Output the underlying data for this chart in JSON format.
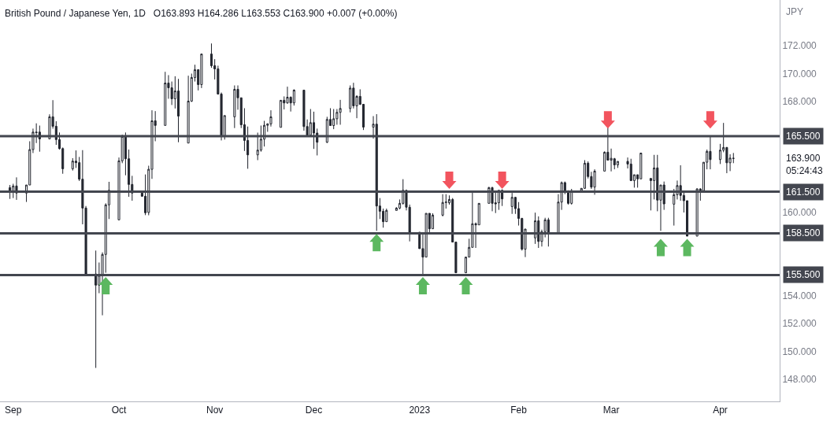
{
  "chart_data": {
    "type": "candlestick",
    "title": "British Pound / Japanese Yen, 1D",
    "subtitle": "O163.893 H164.286 L163.553 C163.900 +0.007 (+0.00%)",
    "ylabel": "JPY",
    "x": [
      "2022-08-31",
      "2022-09-01",
      "2022-09-02",
      "2022-09-05",
      "2022-09-06",
      "2022-09-07",
      "2022-09-08",
      "2022-09-09",
      "2022-09-12",
      "2022-09-13",
      "2022-09-14",
      "2022-09-15",
      "2022-09-16",
      "2022-09-19",
      "2022-09-20",
      "2022-09-21",
      "2022-09-22",
      "2022-09-23",
      "2022-09-26",
      "2022-09-27",
      "2022-09-28",
      "2022-09-29",
      "2022-09-30",
      "2022-10-03",
      "2022-10-04",
      "2022-10-05",
      "2022-10-06",
      "2022-10-07",
      "2022-10-10",
      "2022-10-11",
      "2022-10-12",
      "2022-10-13",
      "2022-10-14",
      "2022-10-17",
      "2022-10-18",
      "2022-10-19",
      "2022-10-20",
      "2022-10-21",
      "2022-10-24",
      "2022-10-25",
      "2022-10-26",
      "2022-10-27",
      "2022-10-28",
      "2022-10-31",
      "2022-11-01",
      "2022-11-02",
      "2022-11-03",
      "2022-11-04",
      "2022-11-07",
      "2022-11-08",
      "2022-11-09",
      "2022-11-10",
      "2022-11-11",
      "2022-11-14",
      "2022-11-15",
      "2022-11-16",
      "2022-11-17",
      "2022-11-18",
      "2022-11-21",
      "2022-11-22",
      "2022-11-23",
      "2022-11-24",
      "2022-11-25",
      "2022-11-28",
      "2022-11-29",
      "2022-11-30",
      "2022-12-01",
      "2022-12-02",
      "2022-12-05",
      "2022-12-06",
      "2022-12-07",
      "2022-12-08",
      "2022-12-09",
      "2022-12-12",
      "2022-12-13",
      "2022-12-14",
      "2022-12-15",
      "2022-12-16",
      "2022-12-19",
      "2022-12-20",
      "2022-12-21",
      "2022-12-22",
      "2022-12-23",
      "2022-12-26",
      "2022-12-27",
      "2022-12-28",
      "2022-12-29",
      "2022-12-30",
      "2023-01-02",
      "2023-01-03",
      "2023-01-04",
      "2023-01-05",
      "2023-01-06",
      "2023-01-09",
      "2023-01-10",
      "2023-01-11",
      "2023-01-12",
      "2023-01-13",
      "2023-01-16",
      "2023-01-17",
      "2023-01-18",
      "2023-01-19",
      "2023-01-20",
      "2023-01-23",
      "2023-01-24",
      "2023-01-25",
      "2023-01-26",
      "2023-01-27",
      "2023-01-30",
      "2023-01-31",
      "2023-02-01",
      "2023-02-02",
      "2023-02-03",
      "2023-02-06",
      "2023-02-07",
      "2023-02-08",
      "2023-02-09",
      "2023-02-10",
      "2023-02-13",
      "2023-02-14",
      "2023-02-15",
      "2023-02-16",
      "2023-02-17",
      "2023-02-20",
      "2023-02-21",
      "2023-02-22",
      "2023-02-23",
      "2023-02-24",
      "2023-02-27",
      "2023-02-28",
      "2023-03-01",
      "2023-03-02",
      "2023-03-03",
      "2023-03-06",
      "2023-03-07",
      "2023-03-08",
      "2023-03-09",
      "2023-03-10",
      "2023-03-13",
      "2023-03-14",
      "2023-03-15",
      "2023-03-16",
      "2023-03-17",
      "2023-03-20",
      "2023-03-21",
      "2023-03-22",
      "2023-03-23",
      "2023-03-24",
      "2023-03-27",
      "2023-03-28",
      "2023-03-29",
      "2023-03-30",
      "2023-03-31",
      "2023-04-03",
      "2023-04-04",
      "2023-04-05",
      "2023-04-06",
      "2023-04-07"
    ],
    "ohlc": [
      [
        161.79,
        161.98,
        160.98,
        161.47
      ],
      [
        161.53,
        162.07,
        161.04,
        161.91
      ],
      [
        161.91,
        162.53,
        160.91,
        161.4
      ],
      [
        161.4,
        161.98,
        160.76,
        161.98
      ],
      [
        161.98,
        165.13,
        161.98,
        164.53
      ],
      [
        164.53,
        166.04,
        164.28,
        165.79
      ],
      [
        165.79,
        166.42,
        165.0,
        165.75
      ],
      [
        165.79,
        166.26,
        164.38,
        165.3
      ],
      [
        165.3,
        167.07,
        165.3,
        166.89
      ],
      [
        166.89,
        168.09,
        166.04,
        166.21
      ],
      [
        166.21,
        166.57,
        164.87,
        165.25
      ],
      [
        165.25,
        165.76,
        164.53,
        164.6
      ],
      [
        164.6,
        164.68,
        162.79,
        163.15
      ],
      [
        163.15,
        163.91,
        163.02,
        163.7
      ],
      [
        163.7,
        164.47,
        163.21,
        163.59
      ],
      [
        163.59,
        164.0,
        162.27,
        162.4
      ],
      [
        162.4,
        164.49,
        159.15,
        160.32
      ],
      [
        160.32,
        160.47,
        155.51,
        155.57
      ],
      [
        155.57,
        157.26,
        148.81,
        154.77
      ],
      [
        154.77,
        156.4,
        154.19,
        155.47
      ],
      [
        155.47,
        157.13,
        152.6,
        156.98
      ],
      [
        156.98,
        160.66,
        155.66,
        160.55
      ],
      [
        160.55,
        162.21,
        159.53,
        161.6
      ],
      [
        159.47,
        163.96,
        159.47,
        163.72
      ],
      [
        163.72,
        165.6,
        163.55,
        165.47
      ],
      [
        165.47,
        165.76,
        162.68,
        163.87
      ],
      [
        163.87,
        164.53,
        161.13,
        162.02
      ],
      [
        162.02,
        162.64,
        160.85,
        161.4
      ],
      [
        161.4,
        161.51,
        161.13,
        161.17
      ],
      [
        161.17,
        162.74,
        159.81,
        159.98
      ],
      [
        160.0,
        163.37,
        159.8,
        163.11
      ],
      [
        163.11,
        167.36,
        162.42,
        166.6
      ],
      [
        166.6,
        167.3,
        165.13,
        166.27
      ],
      [
        166.27,
        170.13,
        166.27,
        169.32
      ],
      [
        169.32,
        169.89,
        168.19,
        168.98
      ],
      [
        168.98,
        169.43,
        167.74,
        168.19
      ],
      [
        168.19,
        169.81,
        167.49,
        168.75
      ],
      [
        168.75,
        169.62,
        165.06,
        166.94
      ],
      [
        165.0,
        169.85,
        165.0,
        168.02
      ],
      [
        168.02,
        170.0,
        167.96,
        169.72
      ],
      [
        169.72,
        170.64,
        169.43,
        170.28
      ],
      [
        170.28,
        170.28,
        168.79,
        169.21
      ],
      [
        169.21,
        171.41,
        168.96,
        171.41
      ],
      [
        171.41,
        172.17,
        170.42,
        170.57
      ],
      [
        170.57,
        171.04,
        169.58,
        170.34
      ],
      [
        170.34,
        170.57,
        168.49,
        168.53
      ],
      [
        168.53,
        168.64,
        165.19,
        165.47
      ],
      [
        165.47,
        166.98,
        165.25,
        166.98
      ],
      [
        166.89,
        169.15,
        166.08,
        168.87
      ],
      [
        168.87,
        169.15,
        167.4,
        168.26
      ],
      [
        168.26,
        168.26,
        166.08,
        166.32
      ],
      [
        166.32,
        167.51,
        164.43,
        165.19
      ],
      [
        165.19,
        166.19,
        163.15,
        164.15
      ],
      [
        164.15,
        165.75,
        163.77,
        164.49
      ],
      [
        164.49,
        166.26,
        164.38,
        165.28
      ],
      [
        165.28,
        166.6,
        164.75,
        166.28
      ],
      [
        166.28,
        166.42,
        165.81,
        166.38
      ],
      [
        166.38,
        167.36,
        166.19,
        166.89
      ],
      [
        166.13,
        168.08,
        166.13,
        168.08
      ],
      [
        168.08,
        168.36,
        167.42,
        167.89
      ],
      [
        167.89,
        169.06,
        167.83,
        168.3
      ],
      [
        168.3,
        168.36,
        167.27,
        167.89
      ],
      [
        167.89,
        168.87,
        167.7,
        168.81
      ],
      [
        168.81,
        168.81,
        165.89,
        166.19
      ],
      [
        166.19,
        166.7,
        165.47,
        165.57
      ],
      [
        165.57,
        167.45,
        165.57,
        166.47
      ],
      [
        166.47,
        167.26,
        164.58,
        165.72
      ],
      [
        165.72,
        166.04,
        164.11,
        165.06
      ],
      [
        165.06,
        166.89,
        165.0,
        166.7
      ],
      [
        166.7,
        167.51,
        166.26,
        166.26
      ],
      [
        166.26,
        167.45,
        166.0,
        166.75
      ],
      [
        166.75,
        167.45,
        166.32,
        167.21
      ],
      [
        167.21,
        168.11,
        166.32,
        167.49
      ],
      [
        167.49,
        169.15,
        167.21,
        168.96
      ],
      [
        168.96,
        169.34,
        167.49,
        167.68
      ],
      [
        167.68,
        168.45,
        166.79,
        168.36
      ],
      [
        168.36,
        168.87,
        167.74,
        167.79
      ],
      [
        167.79,
        167.79,
        165.94,
        166.15
      ],
      [
        166.15,
        166.94,
        165.32,
        166.36
      ],
      [
        166.36,
        167.08,
        158.68,
        160.47
      ],
      [
        160.47,
        161.04,
        159.53,
        160.09
      ],
      [
        160.09,
        160.28,
        158.91,
        159.34
      ],
      [
        159.34,
        160.28,
        159.34,
        160.15
      ],
      [
        160.15,
        160.38,
        160.15,
        160.32
      ],
      [
        160.32,
        160.94,
        160.23,
        160.66
      ],
      [
        160.66,
        162.4,
        160.57,
        161.6
      ],
      [
        161.6,
        161.6,
        160.15,
        160.38
      ],
      [
        160.38,
        160.57,
        157.92,
        158.58
      ],
      [
        158.58,
        158.58,
        157.4,
        157.4
      ],
      [
        157.4,
        158.49,
        155.5,
        156.79
      ],
      [
        156.79,
        159.94,
        156.79,
        159.94
      ],
      [
        159.94,
        159.94,
        158.58,
        158.83
      ],
      [
        158.83,
        159.94,
        158.83,
        159.81
      ],
      [
        159.81,
        161.32,
        159.72,
        160.72
      ],
      [
        160.72,
        161.32,
        160.28,
        160.75
      ],
      [
        160.7,
        161.23,
        160.57,
        160.94
      ],
      [
        160.94,
        161.04,
        157.87,
        157.87
      ],
      [
        157.87,
        157.87,
        155.66,
        155.66
      ],
      [
        155.66,
        156.79,
        155.66,
        156.79
      ],
      [
        156.79,
        158.11,
        156.79,
        157.49
      ],
      [
        157.49,
        161.42,
        157.49,
        159.19
      ],
      [
        159.19,
        159.28,
        157.45,
        159.11
      ],
      [
        159.11,
        160.66,
        159.11,
        160.66
      ],
      [
        160.66,
        161.85,
        160.66,
        161.79
      ],
      [
        161.79,
        161.85,
        160.09,
        160.66
      ],
      [
        160.7,
        161.51,
        159.96,
        160.62
      ],
      [
        160.7,
        161.6,
        160.19,
        161.6
      ],
      [
        161.6,
        161.66,
        160.47,
        160.98
      ],
      [
        160.43,
        161.41,
        159.9,
        161.09
      ],
      [
        161.09,
        161.13,
        159.9,
        160.28
      ],
      [
        160.28,
        160.75,
        159.06,
        159.57
      ],
      [
        159.57,
        159.62,
        157.26,
        157.36
      ],
      [
        157.36,
        158.81,
        156.79,
        158.81
      ],
      [
        158.17,
        159.99,
        157.74,
        159.4
      ],
      [
        159.4,
        159.72,
        157.45,
        157.92
      ],
      [
        157.92,
        158.77,
        157.55,
        158.62
      ],
      [
        158.62,
        159.62,
        158.21,
        159.47
      ],
      [
        159.47,
        159.62,
        157.55,
        158.45
      ],
      [
        158.45,
        161.32,
        158.45,
        160.75
      ],
      [
        160.75,
        162.23,
        160.19,
        162.15
      ],
      [
        162.15,
        162.23,
        161.32,
        161.45
      ],
      [
        161.45,
        161.6,
        160.57,
        160.66
      ],
      [
        160.66,
        161.7,
        160.57,
        161.57
      ],
      [
        161.57,
        161.74,
        161.51,
        161.74
      ],
      [
        161.74,
        163.77,
        161.7,
        163.55
      ],
      [
        163.55,
        163.68,
        162.45,
        162.59
      ],
      [
        162.59,
        162.93,
        161.7,
        161.83
      ],
      [
        161.83,
        163.11,
        161.28,
        162.98
      ],
      [
        162.98,
        164.4,
        162.98,
        164.34
      ],
      [
        164.34,
        166.13,
        163.77,
        163.77
      ],
      [
        163.77,
        164.6,
        162.96,
        163.9
      ],
      [
        163.87,
        163.93,
        163.11,
        163.43
      ],
      [
        163.43,
        163.68,
        163.21,
        163.68
      ],
      [
        163.68,
        163.96,
        163.17,
        163.49
      ],
      [
        163.49,
        163.87,
        162.26,
        162.3
      ],
      [
        162.3,
        162.72,
        161.79,
        162.72
      ],
      [
        162.72,
        162.72,
        161.79,
        162.42
      ],
      [
        162.42,
        164.28,
        162.42,
        164.28
      ],
      [
        162.45,
        162.49,
        160.15,
        162.3
      ],
      [
        162.3,
        164.15,
        160.94,
        163.21
      ],
      [
        163.21,
        164.15,
        160.09,
        160.89
      ],
      [
        160.89,
        161.98,
        158.68,
        161.98
      ],
      [
        161.98,
        162.23,
        160.19,
        160.62
      ],
      [
        160.6,
        161.7,
        159.06,
        161.28
      ],
      [
        161.28,
        162.3,
        160.94,
        161.94
      ],
      [
        161.94,
        163.4,
        160.85,
        161.23
      ],
      [
        161.23,
        161.51,
        160.0,
        160.85
      ],
      [
        160.85,
        160.85,
        158.3,
        158.3
      ],
      [
        158.3,
        161.74,
        158.3,
        161.7
      ],
      [
        161.7,
        161.74,
        160.85,
        161.57
      ],
      [
        161.57,
        163.62,
        161.51,
        163.62
      ],
      [
        163.62,
        164.53,
        163.11,
        164.4
      ],
      [
        164.4,
        165.51,
        163.11,
        163.81
      ],
      [
        163.81,
        164.94,
        163.49,
        164.49
      ],
      [
        164.49,
        166.45,
        164.34,
        164.68
      ],
      [
        164.68,
        164.72,
        162.83,
        163.58
      ],
      [
        163.58,
        164.19,
        162.98,
        163.92
      ],
      [
        163.893,
        164.286,
        163.553,
        163.9
      ]
    ],
    "xlim": [
      "2022-08-28",
      "2023-04-21"
    ],
    "ylim": [
      146.4,
      175.3
    ],
    "xticks": [
      {
        "value": "2022-09-01",
        "label": "Sep"
      },
      {
        "value": "2022-10-03",
        "label": "Oct"
      },
      {
        "value": "2022-11-01",
        "label": "Nov"
      },
      {
        "value": "2022-12-01",
        "label": "Dec"
      },
      {
        "value": "2023-01-02",
        "label": "2023"
      },
      {
        "value": "2023-02-01",
        "label": "Feb"
      },
      {
        "value": "2023-03-01",
        "label": "Mar"
      },
      {
        "value": "2023-04-03",
        "label": "Apr"
      }
    ],
    "yticks": [
      {
        "value": 148,
        "label": "148.000"
      },
      {
        "value": 150,
        "label": "150.000"
      },
      {
        "value": 152,
        "label": "152.000"
      },
      {
        "value": 154,
        "label": "154.000"
      },
      {
        "value": 160,
        "label": "160.000"
      },
      {
        "value": 168,
        "label": "168.000"
      },
      {
        "value": 170,
        "label": "170.000"
      },
      {
        "value": 172,
        "label": "172.000"
      }
    ],
    "ref_lines": [
      {
        "axis": "y",
        "value": 165.5,
        "label": "165.500",
        "color": "#43464f"
      },
      {
        "axis": "y",
        "value": 161.5,
        "label": "161.500",
        "color": "#43464f"
      },
      {
        "axis": "y",
        "value": 158.5,
        "label": "158.500",
        "color": "#43464f"
      },
      {
        "axis": "y",
        "value": 155.5,
        "label": "155.500",
        "color": "#43464f"
      }
    ],
    "annotations": [
      "163.900",
      "05:24:43"
    ]
  }
}
